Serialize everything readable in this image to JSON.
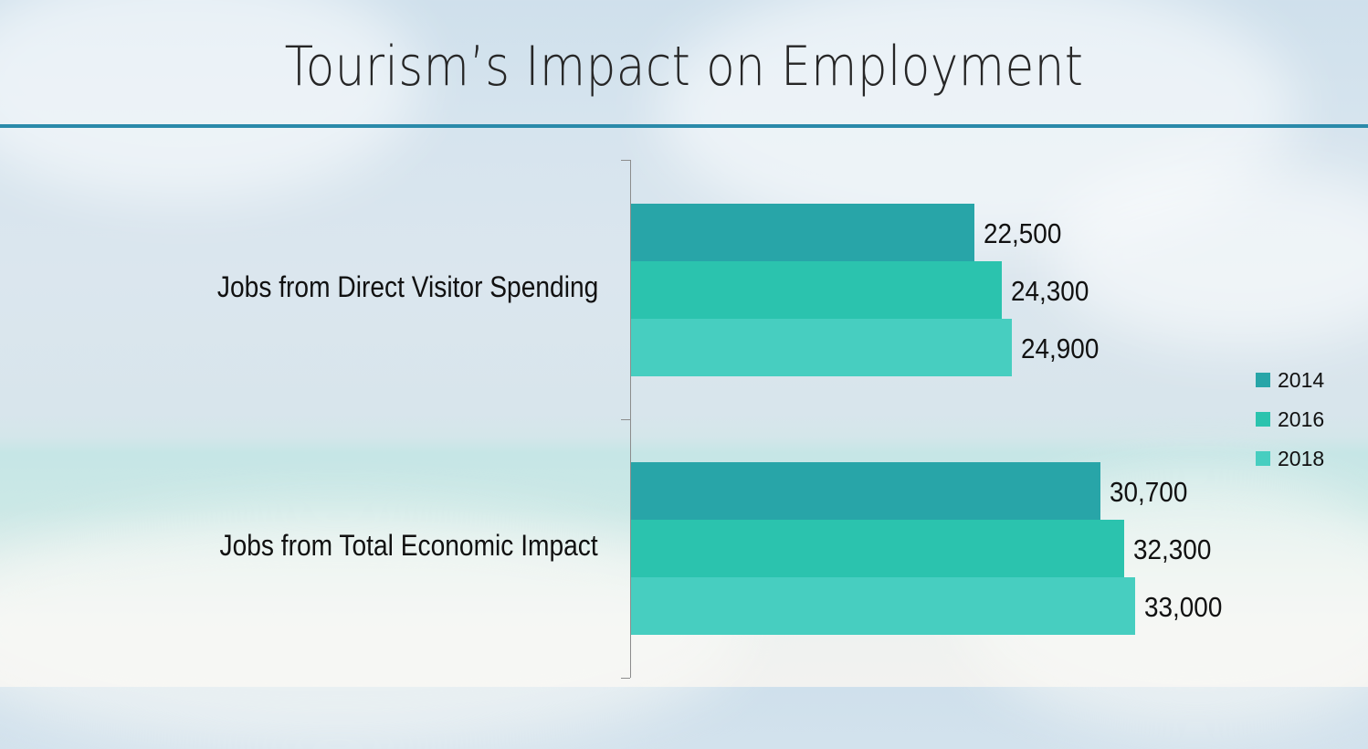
{
  "slide": {
    "title": "Tourism’s Impact on Employment",
    "accent_color": "#2a8aaa"
  },
  "chart_data": {
    "type": "bar",
    "orientation": "horizontal",
    "title": "Tourism’s Impact on Employment",
    "xlabel": "",
    "ylabel": "",
    "grid": false,
    "legend_position": "right",
    "categories": [
      "Jobs from Direct Visitor Spending",
      "Jobs from Total Economic Impact"
    ],
    "series": [
      {
        "name": "2014",
        "color": "#28a5a8",
        "values": [
          22500,
          30700
        ],
        "labels": [
          "22,500",
          "30,700"
        ]
      },
      {
        "name": "2016",
        "color": "#2bc3ae",
        "values": [
          24300,
          32300
        ],
        "labels": [
          "24,300",
          "32,300"
        ]
      },
      {
        "name": "2018",
        "color": "#47cec0",
        "values": [
          24900,
          33000
        ],
        "labels": [
          "24,900",
          "33,000"
        ]
      }
    ]
  }
}
